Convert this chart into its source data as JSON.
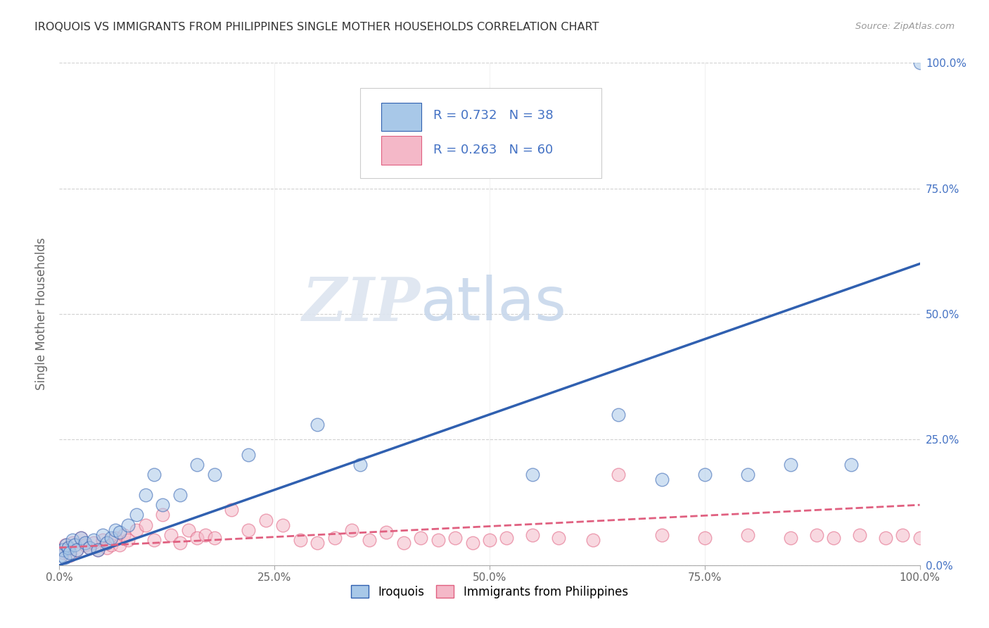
{
  "title": "IROQUOIS VS IMMIGRANTS FROM PHILIPPINES SINGLE MOTHER HOUSEHOLDS CORRELATION CHART",
  "source": "Source: ZipAtlas.com",
  "ylabel": "Single Mother Households",
  "legend_label1": "Iroquois",
  "legend_label2": "Immigrants from Philippines",
  "r1": 0.732,
  "n1": 38,
  "r2": 0.263,
  "n2": 60,
  "color_blue": "#a8c8e8",
  "color_pink": "#f4b8c8",
  "color_blue_line": "#3060b0",
  "color_pink_line": "#e06080",
  "color_grid": "#cccccc",
  "color_stat": "#4472c4",
  "watermark_zip": "ZIP",
  "watermark_atlas": "atlas",
  "iroquois_x": [
    0.2,
    0.4,
    0.6,
    0.8,
    1.0,
    1.2,
    1.5,
    1.8,
    2.0,
    2.5,
    3.0,
    3.5,
    4.0,
    4.5,
    5.0,
    5.5,
    6.0,
    6.5,
    7.0,
    8.0,
    9.0,
    10.0,
    11.0,
    12.0,
    14.0,
    16.0,
    18.0,
    22.0,
    30.0,
    35.0,
    55.0,
    65.0,
    70.0,
    75.0,
    80.0,
    85.0,
    92.0,
    100.0
  ],
  "iroquois_y": [
    2.0,
    3.0,
    1.5,
    4.0,
    3.5,
    2.5,
    5.0,
    4.0,
    3.0,
    5.5,
    4.5,
    3.5,
    5.0,
    3.0,
    6.0,
    4.5,
    5.5,
    7.0,
    6.5,
    8.0,
    10.0,
    14.0,
    18.0,
    12.0,
    14.0,
    20.0,
    18.0,
    22.0,
    28.0,
    20.0,
    18.0,
    30.0,
    17.0,
    18.0,
    18.0,
    20.0,
    20.0,
    100.0
  ],
  "philippines_x": [
    0.3,
    0.5,
    0.7,
    1.0,
    1.2,
    1.5,
    2.0,
    2.5,
    3.0,
    3.5,
    4.0,
    4.5,
    5.0,
    5.5,
    6.0,
    6.5,
    7.0,
    7.5,
    8.0,
    9.0,
    10.0,
    11.0,
    12.0,
    13.0,
    14.0,
    15.0,
    16.0,
    17.0,
    18.0,
    20.0,
    22.0,
    24.0,
    26.0,
    28.0,
    30.0,
    32.0,
    34.0,
    36.0,
    38.0,
    40.0,
    42.0,
    44.0,
    46.0,
    48.0,
    50.0,
    52.0,
    55.0,
    58.0,
    62.0,
    65.0,
    70.0,
    75.0,
    80.0,
    85.0,
    88.0,
    90.0,
    93.0,
    96.0,
    98.0,
    100.0
  ],
  "philippines_y": [
    3.0,
    2.5,
    4.0,
    3.5,
    2.0,
    4.5,
    3.0,
    5.5,
    4.0,
    3.5,
    4.5,
    3.0,
    5.0,
    3.5,
    4.0,
    5.5,
    4.0,
    6.0,
    5.0,
    7.0,
    8.0,
    5.0,
    10.0,
    6.0,
    4.5,
    7.0,
    5.5,
    6.0,
    5.5,
    11.0,
    7.0,
    9.0,
    8.0,
    5.0,
    4.5,
    5.5,
    7.0,
    5.0,
    6.5,
    4.5,
    5.5,
    5.0,
    5.5,
    4.5,
    5.0,
    5.5,
    6.0,
    5.5,
    5.0,
    18.0,
    6.0,
    5.5,
    6.0,
    5.5,
    6.0,
    5.5,
    6.0,
    5.5,
    6.0,
    5.5
  ],
  "xmin": 0.0,
  "xmax": 100.0,
  "ymin": 0.0,
  "ymax": 100.0,
  "blue_line_x0": 0.0,
  "blue_line_y0": 0.0,
  "blue_line_x1": 100.0,
  "blue_line_y1": 60.0,
  "pink_line_x0": 0.0,
  "pink_line_y0": 3.5,
  "pink_line_x1": 100.0,
  "pink_line_y1": 12.0
}
